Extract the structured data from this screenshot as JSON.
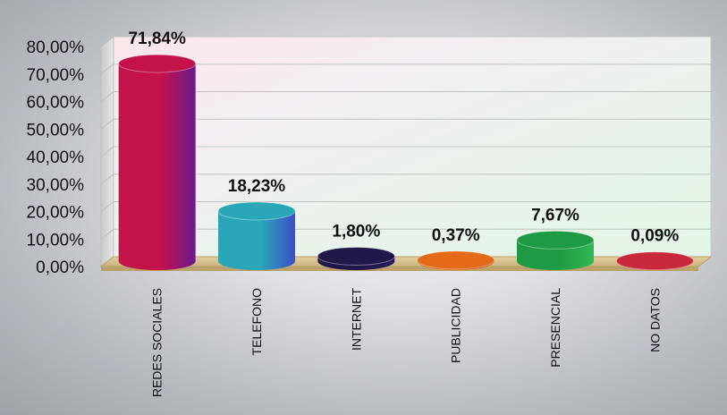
{
  "chart_data": {
    "type": "bar",
    "title": "",
    "xlabel": "",
    "ylabel": "",
    "categories": [
      "REDES  SOCIALES",
      "TELEFONO",
      "INTERNET",
      "PUBLICIDAD",
      "PRESENCIAL",
      "NO DATOS"
    ],
    "values": [
      71.84,
      18.23,
      1.8,
      0.37,
      7.67,
      0.09
    ],
    "value_labels": [
      "71,84%",
      "18,23%",
      "1,80%",
      "0,37%",
      "7,67%",
      "0,09%"
    ],
    "ylim": [
      0,
      80
    ],
    "y_ticks": [
      "0,00%",
      "10,00%",
      "20,00%",
      "30,00%",
      "40,00%",
      "50,00%",
      "60,00%",
      "70,00%",
      "80,00%"
    ],
    "grid": true,
    "bar_colors": [
      "#c4124a",
      "#2aa6b8",
      "#201848",
      "#e26a18",
      "#1f9a44",
      "#c8283a"
    ],
    "bar_colors_end": [
      "#6a1a90",
      "#3a4fc8",
      "#2a1a5a",
      "#d94818",
      "#2fb852",
      "#d0303c"
    ]
  }
}
